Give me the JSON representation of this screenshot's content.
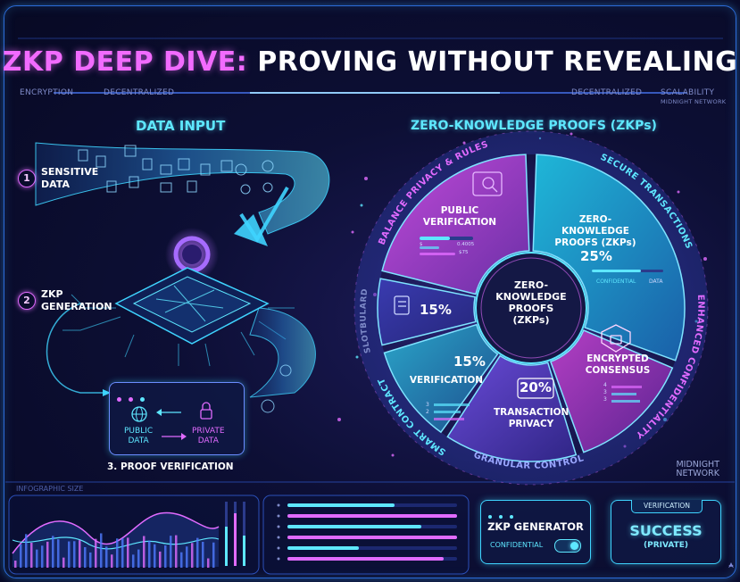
{
  "title": {
    "part1": "ZKP DEEP DIVE:",
    "part2": "PROVING WITHOUT REVEALING"
  },
  "tags": {
    "left1": "ENCRYPTION",
    "left2": "DECENTRALIZED",
    "right1": "DECENTRALIZED",
    "right2": "SCALABILITY",
    "right3": "MIDNIGHT NETWORK"
  },
  "left": {
    "heading": "DATA INPUT",
    "step1": {
      "num": "1",
      "label_line1": "SENSITIVE",
      "label_line2": "DATA"
    },
    "step2": {
      "num": "2",
      "label_line1": "ZKP",
      "label_line2": "GENERATION"
    },
    "verify": {
      "public_line1": "PUBLIC",
      "public_line2": "DATA",
      "private_line1": "PRIVATE",
      "private_line2": "DATA",
      "caption": "3. PROOF VERIFICATION"
    }
  },
  "right": {
    "heading": "ZERO-KNOWLEDGE PROOFS (ZKPs)",
    "center_line1": "ZERO-",
    "center_line2": "KNOWLEDGE",
    "center_line3": "PROOFS",
    "center_line4": "(ZKPs)",
    "segments": {
      "public_verification": {
        "line1": "PUBLIC",
        "line2": "VERIFICATION",
        "stat1": "0.4005",
        "stat2": "$75",
        "stat_label": "$"
      },
      "zkp": {
        "line1": "ZERO-KNOWLEDGE",
        "line2": "PROOFS (ZKPs)",
        "pct": "25%",
        "sub1": "CONFIDENTIAL",
        "sub2": "DATA"
      },
      "left_doc": {
        "pct": "15%"
      },
      "encrypted": {
        "line1": "ENCRYPTED",
        "line2": "CONSENSUS",
        "ticks": [
          "4",
          "3",
          "3"
        ]
      },
      "verification": {
        "line1": "VERIFICATION",
        "pct": "15%",
        "ticks": [
          "3",
          "2"
        ]
      },
      "transaction": {
        "line1": "TRANSACTION",
        "line2": "PRIVACY",
        "pct": "20%"
      }
    },
    "ring": {
      "balance": "BALANCE PRIVACY & RULES",
      "secure": "SECURE TRANSACTIONS",
      "enhanced": "ENHANCED CONFIDENTIALITY",
      "granular": "GRANULAR CONTROL",
      "smart": "SMART CONTRACTS",
      "stablecoin": "SLOTBULARD"
    },
    "brand_line1": "MIDNIGHT",
    "brand_line2": "NETWORK"
  },
  "bottom": {
    "infographic_label": "INFOGRAPHIC SIZE",
    "generator": {
      "title": "ZKP GENERATOR",
      "toggle_label": "CONFIDENTIAL"
    },
    "verification": {
      "tab": "VERIFICATION",
      "status": "SUCCESS",
      "sub": "(PRIVATE)"
    }
  },
  "colors": {
    "cyan": "#3fd4ff",
    "magenta": "#e16bff",
    "purple": "#7b5cff",
    "bg": "#070923"
  }
}
